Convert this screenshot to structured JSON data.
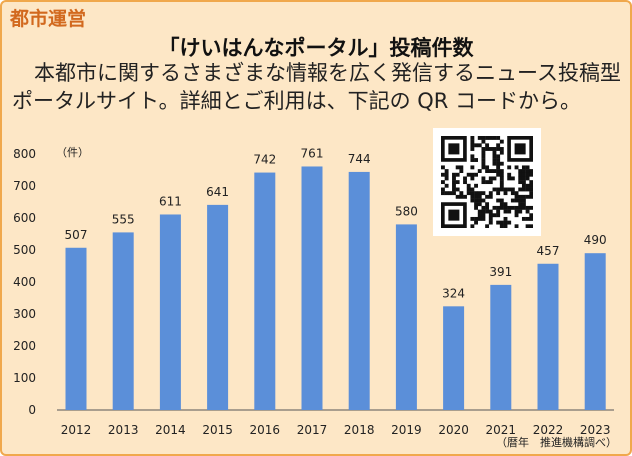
{
  "section_label": "都市運営",
  "title": "「けいはんなポータル」投稿件数",
  "description": "本都市に関するさまざまな情報を広く発信するニュース投稿型ポータルサイト。詳細とご利用は、下記の QR コードから。",
  "qr_icon": "qr-code-icon",
  "colors": {
    "bar": "#5b8fd9",
    "background": "#fde7c6",
    "border": "#f0a84c",
    "section": "#d2691e"
  },
  "chart_data": {
    "type": "bar",
    "categories": [
      "2012",
      "2013",
      "2014",
      "2015",
      "2016",
      "2017",
      "2018",
      "2019",
      "2020",
      "2021",
      "2022",
      "2023"
    ],
    "values": [
      507,
      555,
      611,
      641,
      742,
      761,
      744,
      580,
      324,
      391,
      457,
      490
    ],
    "ylim": [
      0,
      800
    ],
    "yticks": [
      0,
      100,
      200,
      300,
      400,
      500,
      600,
      700,
      800
    ],
    "unit_label": "（件）",
    "x_unit_label": "（暦年",
    "source": "推進機構調べ）",
    "grid": false,
    "legend": "none"
  }
}
